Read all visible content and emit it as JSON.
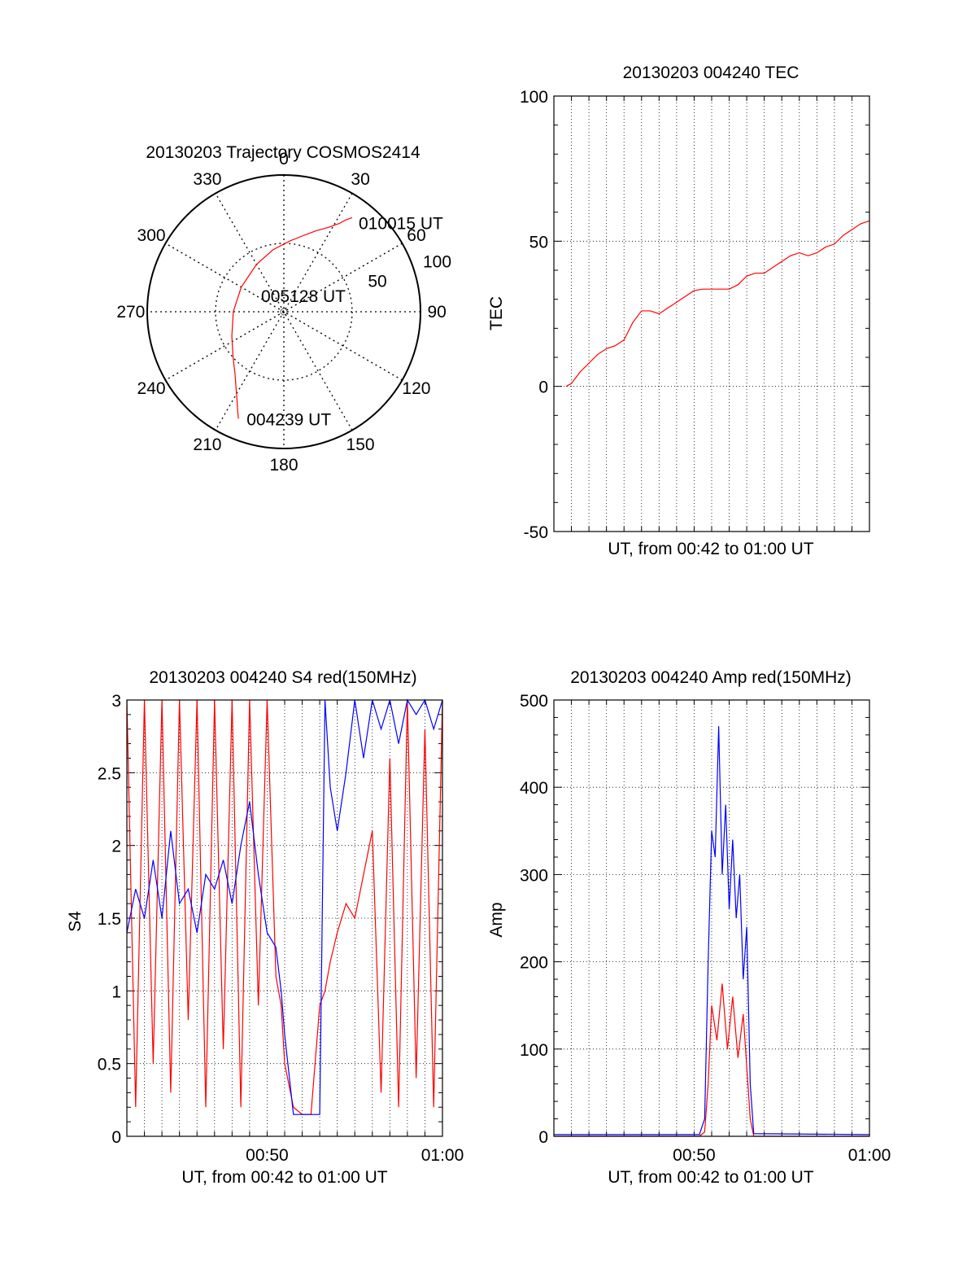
{
  "colors": {
    "red": "#ff0000",
    "blue": "#0000ff",
    "black": "#000000"
  },
  "panels": {
    "polar": {
      "chart_data": {
        "type": "scatter",
        "title": "20130203 Trajectory COSMOS2414",
        "azimuth_labels": [
          "0",
          "30",
          "60",
          "90",
          "120",
          "150",
          "180",
          "210",
          "240",
          "270",
          "300",
          "330"
        ],
        "elevation_labels": [
          "50",
          "100"
        ],
        "points": [
          {
            "label": "004239 UT",
            "azimuth": 203,
            "elevation": 85
          },
          {
            "label": "005128 UT",
            "azimuth": 0,
            "elevation": 0
          },
          {
            "label": "010015 UT",
            "azimuth": 36,
            "elevation": 85
          }
        ],
        "series": [
          {
            "color": "#ff0000",
            "azimuth": [
              203,
              205,
              208,
              212,
              218,
              228,
              245,
              270,
              300,
              330,
              350,
              5,
              15,
              22,
              28,
              32,
              34,
              36
            ],
            "elevation": [
              85,
              80,
              73,
              66,
              58,
              50,
              42,
              37,
              36,
              40,
              46,
              52,
              58,
              64,
              70,
              76,
              81,
              85
            ]
          }
        ]
      }
    },
    "tec": {
      "chart_data": {
        "type": "line",
        "title": "20130203 004240 TEC",
        "xlabel": "UT, from 00:42 to 01:00 UT",
        "ylabel": "TEC",
        "xlim": [
          0,
          18
        ],
        "ylim": [
          -50,
          100
        ],
        "yticks": [
          "-50",
          "0",
          "50",
          "100"
        ],
        "grid": true,
        "series": [
          {
            "color": "#ff0000",
            "x": [
              0.7,
              1.0,
              1.5,
              2.0,
              2.5,
              3.0,
              3.5,
              4.0,
              4.5,
              5.0,
              5.5,
              6.0,
              6.5,
              7.0,
              7.5,
              8.0,
              8.5,
              9.0,
              9.5,
              10.0,
              10.5,
              11.0,
              11.5,
              12.0,
              12.5,
              13.0,
              13.5,
              14.0,
              14.5,
              15.0,
              15.5,
              16.0,
              16.5,
              17.0,
              17.5,
              18.0
            ],
            "y": [
              0,
              1,
              5,
              8,
              11,
              13,
              14,
              16,
              22,
              26,
              26,
              25,
              27,
              29,
              31,
              33,
              33.5,
              33.5,
              33.5,
              33.5,
              35,
              38,
              39,
              39,
              41,
              43,
              45,
              46,
              45,
              46,
              48,
              49,
              52,
              54,
              56,
              57
            ]
          }
        ]
      }
    },
    "s4": {
      "chart_data": {
        "type": "line",
        "title": "20130203 004240 S4 red(150MHz)",
        "xlabel": "UT, from 00:42 to 01:00 UT",
        "ylabel": "S4",
        "xlim": [
          0,
          18
        ],
        "ylim": [
          0,
          3
        ],
        "xticks": [
          {
            "x": 8,
            "label": "00:50"
          },
          {
            "x": 18,
            "label": "01:00"
          }
        ],
        "yticks": [
          "0",
          "0.5",
          "1",
          "1.5",
          "2",
          "2.5",
          "3"
        ],
        "grid": true,
        "series": [
          {
            "color": "#ff0000",
            "x": [
              0.0,
              0.5,
              1.0,
              1.5,
              2.0,
              2.5,
              3.0,
              3.5,
              4.0,
              4.5,
              5.0,
              5.5,
              6.0,
              6.5,
              7.0,
              7.5,
              8.0,
              8.5,
              8.8,
              9.0,
              9.5,
              10.0,
              10.5,
              11.0,
              11.3,
              11.6,
              12.0,
              12.5,
              13.0,
              13.5,
              14.0,
              14.5,
              15.0,
              15.5,
              16.0,
              16.5,
              17.0,
              17.5,
              18.0
            ],
            "y": [
              3,
              0.2,
              3,
              0.5,
              3,
              0.3,
              3,
              0.8,
              3,
              0.2,
              3,
              0.6,
              3,
              0.2,
              3,
              0.9,
              3,
              1.1,
              0.9,
              0.5,
              0.2,
              0.15,
              0.15,
              0.9,
              1.0,
              1.2,
              1.4,
              1.6,
              1.5,
              1.8,
              2.1,
              0.3,
              2.6,
              0.2,
              3,
              0.4,
              2.8,
              0.2,
              3
            ]
          },
          {
            "color": "#0000ff",
            "x": [
              0.0,
              0.5,
              1.0,
              1.5,
              2.0,
              2.5,
              3.0,
              3.5,
              4.0,
              4.5,
              5.0,
              5.5,
              6.0,
              6.5,
              7.0,
              7.5,
              8.0,
              8.5,
              8.8,
              9.0,
              9.5,
              10.0,
              10.5,
              11.0,
              11.3,
              11.6,
              12.0,
              12.5,
              13.0,
              13.5,
              14.0,
              14.5,
              15.0,
              15.5,
              16.0,
              16.5,
              17.0,
              17.5,
              18.0
            ],
            "y": [
              1.4,
              1.7,
              1.5,
              1.9,
              1.5,
              2.1,
              1.6,
              1.7,
              1.4,
              1.8,
              1.7,
              1.9,
              1.6,
              2.0,
              2.3,
              1.8,
              1.4,
              1.3,
              1.0,
              0.7,
              0.15,
              0.15,
              0.15,
              0.15,
              3,
              2.4,
              2.1,
              2.5,
              3,
              2.6,
              3,
              2.8,
              3,
              2.7,
              3,
              2.9,
              3,
              2.8,
              3
            ]
          }
        ]
      }
    },
    "amp": {
      "chart_data": {
        "type": "line",
        "title": "20130203 004240 Amp red(150MHz)",
        "xlabel": "UT, from 00:42 to 01:00 UT",
        "ylabel": "Amp",
        "xlim": [
          0,
          18
        ],
        "ylim": [
          0,
          500
        ],
        "xticks": [
          {
            "x": 8,
            "label": "00:50"
          },
          {
            "x": 18,
            "label": "01:00"
          }
        ],
        "yticks": [
          "0",
          "100",
          "200",
          "300",
          "400",
          "500"
        ],
        "grid": true,
        "series": [
          {
            "color": "#ff0000",
            "x": [
              0,
              8.3,
              8.6,
              8.8,
              9.0,
              9.3,
              9.6,
              9.9,
              10.2,
              10.5,
              10.8,
              11.0,
              11.2,
              11.4,
              18
            ],
            "y": [
              0,
              0,
              5,
              60,
              150,
              110,
              175,
              100,
              160,
              90,
              140,
              80,
              20,
              0,
              0
            ]
          },
          {
            "color": "#0000ff",
            "x": [
              0,
              8.3,
              8.6,
              8.8,
              9.0,
              9.2,
              9.4,
              9.6,
              9.8,
              10.0,
              10.2,
              10.4,
              10.6,
              10.8,
              11.0,
              11.2,
              11.4,
              18
            ],
            "y": [
              2,
              2,
              20,
              200,
              350,
              320,
              470,
              300,
              380,
              260,
              340,
              250,
              300,
              180,
              240,
              60,
              3,
              2
            ]
          }
        ]
      }
    }
  }
}
